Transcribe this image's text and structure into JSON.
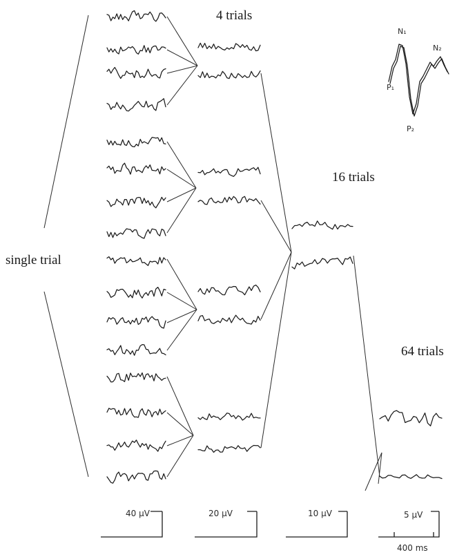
{
  "labels": {
    "single_trial": "single trial",
    "trials_4": "4 trials",
    "trials_16": "16 trials",
    "trials_64": "64 trials"
  },
  "inset_labels": {
    "n1": "N₁",
    "n2": "N₂",
    "p1": "P₁",
    "p2": "P₂"
  },
  "scale_bars": [
    {
      "amplitude": "40 μV"
    },
    {
      "amplitude": "20 μV"
    },
    {
      "amplitude": "10 μV"
    },
    {
      "amplitude": "5 μV"
    }
  ],
  "time_scale": "400 ms",
  "colors": {
    "ink": "#1a1a1a",
    "background": "#ffffff"
  }
}
